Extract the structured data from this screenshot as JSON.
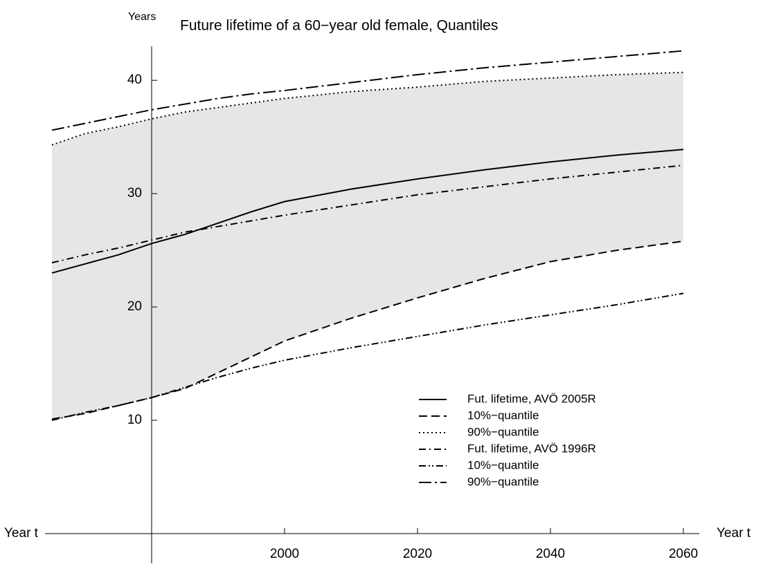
{
  "chart_data": {
    "type": "line",
    "title": "Future lifetime of a 60−year old female, Quantiles",
    "ylabel": "Years",
    "xlabel": "Year t",
    "x": [
      1965,
      1970,
      1975,
      1980,
      1985,
      1990,
      1995,
      2000,
      2010,
      2020,
      2030,
      2040,
      2050,
      2060
    ],
    "series": [
      {
        "name": "Fut. lifetime, AVÖ 2005R",
        "color": "#000000",
        "dash": "solid",
        "values": [
          23.0,
          23.8,
          24.6,
          25.6,
          26.4,
          27.4,
          28.4,
          29.3,
          30.4,
          31.3,
          32.1,
          32.8,
          33.4,
          33.9
        ]
      },
      {
        "name": "10%−quantile",
        "color": "#000000",
        "dash": "dashed",
        "values": [
          10.1,
          10.6,
          11.3,
          12.0,
          12.8,
          14.2,
          15.6,
          17.0,
          19.0,
          20.8,
          22.5,
          24.0,
          25.0,
          25.8
        ]
      },
      {
        "name": "90%−quantile",
        "color": "#000000",
        "dash": "dotted",
        "values": [
          34.3,
          35.3,
          35.9,
          36.6,
          37.2,
          37.6,
          38.0,
          38.4,
          39.0,
          39.4,
          39.9,
          40.2,
          40.5,
          40.7
        ]
      },
      {
        "name": "Fut. lifetime, AVÖ 1996R",
        "color": "#000000",
        "dash": "dashdot",
        "values": [
          23.9,
          24.6,
          25.2,
          25.9,
          26.6,
          27.1,
          27.6,
          28.1,
          29.0,
          29.9,
          30.6,
          31.3,
          31.9,
          32.5
        ]
      },
      {
        "name": "10%−quantile",
        "color": "#000000",
        "dash": "dashdotdot",
        "values": [
          10.0,
          10.7,
          11.3,
          12.0,
          12.9,
          13.8,
          14.6,
          15.3,
          16.4,
          17.4,
          18.4,
          19.3,
          20.2,
          21.2
        ]
      },
      {
        "name": "90%−quantile",
        "color": "#000000",
        "dash": "longdashdot",
        "values": [
          35.6,
          36.2,
          36.8,
          37.4,
          37.9,
          38.4,
          38.8,
          39.1,
          39.8,
          40.5,
          41.1,
          41.6,
          42.1,
          42.6
        ]
      }
    ],
    "band": {
      "color": "#e6e6e6"
    },
    "xlim": [
      1965,
      2060
    ],
    "ylim": [
      0,
      43
    ],
    "xticks": [
      2000,
      2020,
      2040,
      2060
    ],
    "yticks": [
      10,
      20,
      30,
      40
    ],
    "yaxis_x": 1980,
    "legend": "lower right"
  }
}
